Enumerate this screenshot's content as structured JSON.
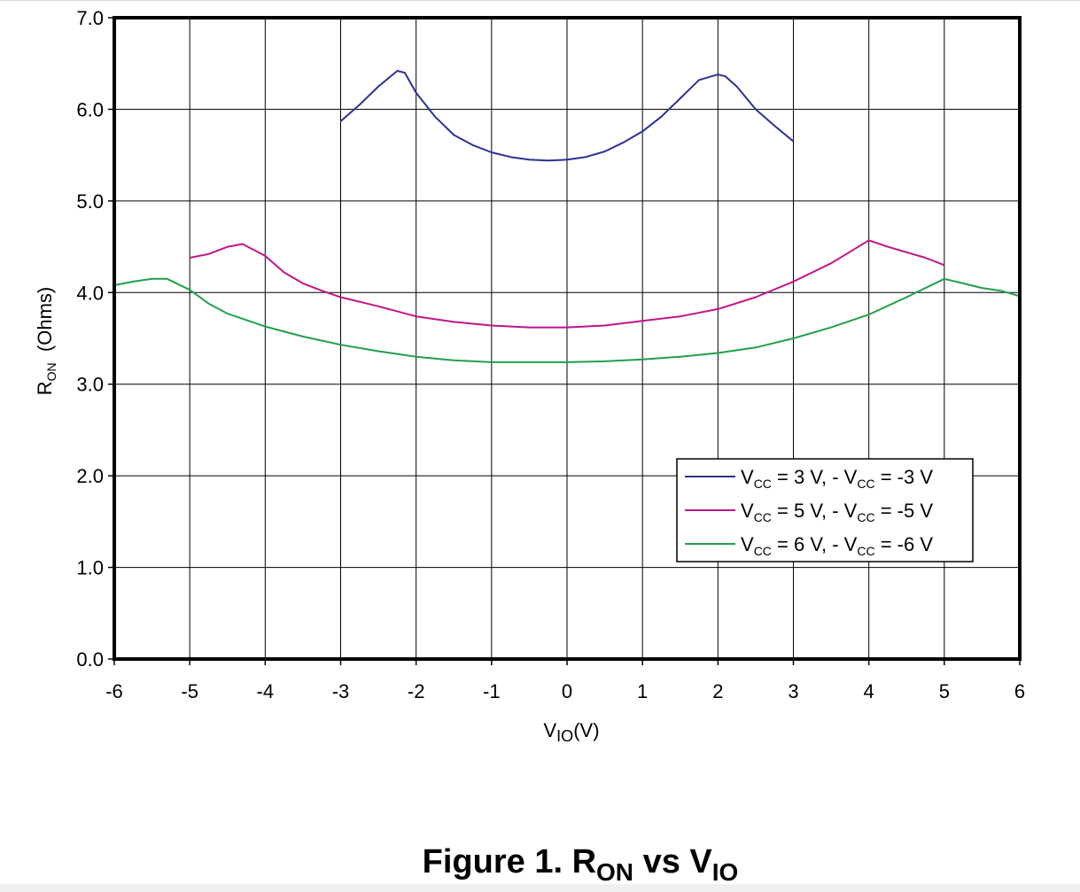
{
  "chart_data": {
    "type": "line",
    "title": "Figure 1. R",
    "title_sub1": "ON",
    "title_mid": " vs V",
    "title_sub2": "IO",
    "xlabel": "V",
    "xlabel_sub": "IO",
    "xlabel_suffix": "(V)",
    "ylabel": "R",
    "ylabel_sub": "ON",
    "ylabel_suffix": "  (Ohms)",
    "xlim": [
      -6,
      6
    ],
    "ylim": [
      0,
      7
    ],
    "x_ticks": [
      "-6",
      "-5",
      "-4",
      "-3",
      "-2",
      "-1",
      "0",
      "1",
      "2",
      "3",
      "4",
      "5",
      "6"
    ],
    "y_ticks": [
      "0.0",
      "1.0",
      "2.0",
      "3.0",
      "4.0",
      "5.0",
      "6.0",
      "7.0"
    ],
    "grid": true,
    "legend_position": "lower-right",
    "series": [
      {
        "name_parts": [
          "V",
          "CC",
          " = 3 V, - V",
          "CC",
          " = -3 V"
        ],
        "color": "#2e3192",
        "x": [
          -3.0,
          -2.75,
          -2.5,
          -2.25,
          -2.15,
          -2.0,
          -1.75,
          -1.5,
          -1.25,
          -1.0,
          -0.75,
          -0.5,
          -0.25,
          0.0,
          0.25,
          0.5,
          0.75,
          1.0,
          1.25,
          1.5,
          1.75,
          2.0,
          2.1,
          2.25,
          2.5,
          2.75,
          3.0
        ],
        "y": [
          5.87,
          6.05,
          6.25,
          6.42,
          6.4,
          6.18,
          5.92,
          5.72,
          5.61,
          5.53,
          5.48,
          5.45,
          5.44,
          5.45,
          5.48,
          5.54,
          5.64,
          5.76,
          5.92,
          6.12,
          6.32,
          6.38,
          6.36,
          6.25,
          6.0,
          5.82,
          5.65
        ]
      },
      {
        "name_parts": [
          "V",
          "CC",
          " = 5 V, - V",
          "CC",
          " = -5 V"
        ],
        "color": "#c0158a",
        "x": [
          -5.0,
          -4.75,
          -4.5,
          -4.3,
          -4.0,
          -3.75,
          -3.5,
          -3.25,
          -3.0,
          -2.5,
          -2.0,
          -1.5,
          -1.0,
          -0.5,
          0.0,
          0.5,
          1.0,
          1.5,
          2.0,
          2.5,
          3.0,
          3.5,
          4.0,
          4.25,
          4.5,
          4.75,
          5.0
        ],
        "y": [
          4.38,
          4.42,
          4.5,
          4.53,
          4.4,
          4.22,
          4.1,
          4.02,
          3.95,
          3.85,
          3.74,
          3.68,
          3.64,
          3.62,
          3.62,
          3.64,
          3.69,
          3.74,
          3.82,
          3.95,
          4.12,
          4.32,
          4.57,
          4.5,
          4.44,
          4.38,
          4.3
        ]
      },
      {
        "name_parts": [
          "V",
          "CC",
          " = 6 V, - V",
          "CC",
          " = -6 V"
        ],
        "color": "#22a04a",
        "x": [
          -6.0,
          -5.75,
          -5.5,
          -5.3,
          -5.0,
          -4.75,
          -4.5,
          -4.25,
          -4.0,
          -3.5,
          -3.0,
          -2.5,
          -2.0,
          -1.5,
          -1.0,
          -0.5,
          0.0,
          0.5,
          1.0,
          1.5,
          2.0,
          2.5,
          3.0,
          3.5,
          4.0,
          4.5,
          5.0,
          5.25,
          5.5,
          5.75,
          6.0
        ],
        "y": [
          4.08,
          4.12,
          4.15,
          4.15,
          4.03,
          3.88,
          3.77,
          3.7,
          3.63,
          3.52,
          3.43,
          3.36,
          3.3,
          3.26,
          3.24,
          3.24,
          3.24,
          3.25,
          3.27,
          3.3,
          3.34,
          3.4,
          3.5,
          3.62,
          3.76,
          3.95,
          4.15,
          4.1,
          4.05,
          4.02,
          3.96
        ]
      }
    ]
  }
}
